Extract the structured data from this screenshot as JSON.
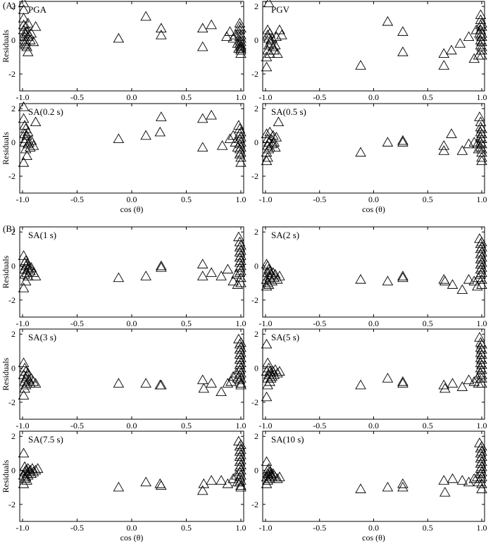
{
  "section_labels": {
    "a": "(A)",
    "b": "(B)"
  },
  "style": {
    "line_color": "#000000",
    "background": "#ffffff"
  },
  "chart_data": [
    {
      "type": "scatter",
      "title": "PGA",
      "xlabel": "",
      "ylabel": "Residuals",
      "xlim": [
        -1.0,
        1.0
      ],
      "ylim": [
        -3.0,
        2.3
      ],
      "xticks": [
        "-1.0",
        "-0.5",
        "0.0",
        "0.5",
        "1.0"
      ],
      "yticks": [
        "-2",
        "0",
        "2"
      ],
      "x": [
        -0.99,
        -0.99,
        -0.99,
        -0.99,
        -0.99,
        -0.98,
        -0.98,
        -0.98,
        -0.98,
        -0.97,
        -0.97,
        -0.97,
        -0.96,
        -0.96,
        -0.95,
        -0.95,
        -0.95,
        -0.94,
        -0.93,
        -0.92,
        -0.9,
        -0.88,
        -0.12,
        0.13,
        0.27,
        0.27,
        0.65,
        0.65,
        0.73,
        0.87,
        0.9,
        0.93,
        0.95,
        0.97,
        0.98,
        0.99,
        0.99,
        0.99,
        0.99,
        0.99,
        0.99,
        0.99,
        1.0,
        1.0,
        1.0,
        1.0,
        1.0,
        1.0,
        1.0,
        1.0,
        1.0
      ],
      "y": [
        2.2,
        1.8,
        1.3,
        0.9,
        0.6,
        0.4,
        0.2,
        0.0,
        -0.2,
        -0.3,
        -0.1,
        0.8,
        0.5,
        -0.4,
        0.2,
        1.0,
        -0.7,
        0.3,
        0.0,
        0.4,
        -0.1,
        0.8,
        0.1,
        1.4,
        0.7,
        0.3,
        0.7,
        -0.4,
        0.9,
        0.2,
        0.5,
        0.1,
        0.3,
        -0.2,
        -0.5,
        1.0,
        0.8,
        0.6,
        0.4,
        0.2,
        0.0,
        -0.2,
        -0.4,
        -0.6,
        -0.8,
        0.3,
        0.1,
        -0.1,
        -0.3,
        -0.5,
        0.7
      ]
    },
    {
      "type": "scatter",
      "title": "PGV",
      "xlabel": "",
      "ylabel": "",
      "xlim": [
        -1.0,
        1.0
      ],
      "ylim": [
        -3.0,
        2.3
      ],
      "xticks": [
        "-1.0",
        "-0.5",
        "0.0",
        "0.5",
        "1.0"
      ],
      "yticks": [
        "-2",
        "0",
        "2"
      ],
      "x": [
        -0.99,
        -0.99,
        -0.98,
        -0.98,
        -0.98,
        -0.97,
        -0.97,
        -0.97,
        -0.96,
        -0.96,
        -0.95,
        -0.95,
        -0.94,
        -0.93,
        -0.92,
        -0.91,
        -0.9,
        -0.89,
        -0.87,
        -0.85,
        -0.12,
        0.13,
        0.27,
        0.27,
        0.65,
        0.65,
        0.72,
        0.8,
        0.88,
        0.93,
        0.95,
        0.97,
        0.98,
        0.99,
        0.99,
        0.99,
        0.99,
        0.99,
        0.99,
        0.99,
        1.0,
        1.0,
        1.0,
        1.0,
        1.0,
        1.0,
        1.0,
        1.0
      ],
      "y": [
        -1.6,
        -1.0,
        -0.6,
        0.3,
        0.6,
        2.2,
        -0.3,
        0.1,
        -0.8,
        0.4,
        -0.2,
        0.0,
        0.1,
        -0.4,
        -0.6,
        -0.3,
        0.2,
        -0.8,
        0.6,
        0.3,
        -1.5,
        1.1,
        0.5,
        -0.7,
        -1.5,
        -0.8,
        -0.6,
        -0.2,
        0.2,
        -1.1,
        0.6,
        -0.9,
        0.4,
        1.5,
        1.2,
        0.9,
        0.6,
        0.3,
        0.0,
        -0.3,
        -0.6,
        -0.9,
        1.0,
        0.8,
        0.4,
        0.2,
        -0.1,
        -0.4
      ]
    },
    {
      "type": "scatter",
      "title": "SA(0.2 s)",
      "xlabel": "cos (θ)",
      "ylabel": "Residuals",
      "xlim": [
        -1.0,
        1.0
      ],
      "ylim": [
        -3.0,
        2.3
      ],
      "xticks": [
        "-1.0",
        "-0.5",
        "0.0",
        "0.5",
        "1.0"
      ],
      "yticks": [
        "-2",
        "0",
        "2"
      ],
      "x": [
        -0.99,
        -0.99,
        -0.99,
        -0.98,
        -0.98,
        -0.98,
        -0.97,
        -0.97,
        -0.97,
        -0.96,
        -0.96,
        -0.95,
        -0.95,
        -0.94,
        -0.93,
        -0.92,
        -0.9,
        -0.88,
        -0.12,
        0.13,
        0.26,
        0.27,
        0.65,
        0.65,
        0.73,
        0.83,
        0.9,
        0.93,
        0.95,
        0.97,
        0.98,
        0.99,
        0.99,
        0.99,
        0.99,
        0.99,
        0.99,
        1.0,
        1.0,
        1.0,
        1.0,
        1.0,
        1.0,
        1.0
      ],
      "y": [
        2.1,
        1.4,
        -1.2,
        1.0,
        0.5,
        0.0,
        -0.4,
        0.8,
        0.2,
        -0.8,
        0.4,
        -0.1,
        0.6,
        0.0,
        -0.3,
        0.1,
        -0.2,
        1.2,
        0.2,
        0.4,
        0.6,
        1.5,
        1.4,
        -0.3,
        1.6,
        -0.2,
        0.2,
        0.4,
        0.0,
        -0.3,
        1.0,
        0.8,
        0.5,
        0.2,
        -0.1,
        -0.4,
        -0.7,
        0.6,
        0.3,
        0.0,
        -0.3,
        -0.6,
        -0.9,
        -1.2
      ]
    },
    {
      "type": "scatter",
      "title": "SA(0.5 s)",
      "xlabel": "cos (θ)",
      "ylabel": "",
      "xlim": [
        -1.0,
        1.0
      ],
      "ylim": [
        -3.0,
        2.3
      ],
      "xticks": [
        "-1.0",
        "-0.5",
        "0.0",
        "0.5",
        "1.0"
      ],
      "yticks": [
        "-2",
        "0",
        "2"
      ],
      "x": [
        -0.99,
        -0.99,
        -0.99,
        -0.98,
        -0.98,
        -0.98,
        -0.97,
        -0.97,
        -0.96,
        -0.96,
        -0.95,
        -0.94,
        -0.93,
        -0.92,
        -0.91,
        -0.9,
        -0.88,
        -0.12,
        0.13,
        0.27,
        0.27,
        0.65,
        0.65,
        0.72,
        0.82,
        0.88,
        0.93,
        0.96,
        0.97,
        0.98,
        0.99,
        0.99,
        0.99,
        0.99,
        0.99,
        0.99,
        1.0,
        1.0,
        1.0,
        1.0,
        1.0,
        1.0,
        1.0,
        1.0
      ],
      "y": [
        -1.1,
        -0.6,
        0.5,
        0.2,
        -0.2,
        -0.9,
        0.0,
        -0.4,
        0.6,
        -0.3,
        0.2,
        -0.1,
        0.4,
        0.0,
        -0.3,
        0.3,
        1.2,
        -0.6,
        0.0,
        0.1,
        0.0,
        -0.2,
        -0.5,
        0.5,
        -0.5,
        -0.1,
        0.0,
        -0.1,
        -0.4,
        1.5,
        1.2,
        0.9,
        0.6,
        0.3,
        0.0,
        -0.3,
        -0.6,
        -0.9,
        0.8,
        0.5,
        0.2,
        -0.1,
        -0.4,
        -1.1
      ]
    },
    {
      "type": "scatter",
      "title": "SA(1 s)",
      "xlabel": "",
      "ylabel": "Residuals",
      "xlim": [
        -1.0,
        1.0
      ],
      "ylim": [
        -3.0,
        2.3
      ],
      "xticks": [
        "-1.0",
        "-0.5",
        "0.0",
        "0.5",
        "1.0"
      ],
      "yticks": [
        "-2",
        "0",
        "2"
      ],
      "x": [
        -0.99,
        -0.99,
        -0.98,
        -0.98,
        -0.98,
        -0.97,
        -0.97,
        -0.97,
        -0.96,
        -0.96,
        -0.95,
        -0.95,
        -0.94,
        -0.93,
        -0.92,
        -0.9,
        -0.88,
        -0.12,
        0.13,
        0.27,
        0.27,
        0.65,
        0.65,
        0.73,
        0.82,
        0.88,
        0.93,
        0.96,
        0.97,
        0.98,
        0.99,
        0.99,
        0.99,
        0.99,
        0.99,
        0.99,
        0.99,
        1.0,
        1.0,
        1.0,
        1.0,
        1.0,
        1.0,
        1.0,
        1.0
      ],
      "y": [
        -1.3,
        0.6,
        0.2,
        -0.2,
        -0.5,
        0.0,
        -0.9,
        0.3,
        -0.4,
        0.1,
        -0.2,
        -0.6,
        0.0,
        -0.3,
        -0.1,
        -0.4,
        -0.6,
        -0.7,
        -0.6,
        0.0,
        -0.1,
        0.1,
        -0.6,
        -0.4,
        -0.6,
        -0.2,
        -0.9,
        -0.5,
        -1.1,
        1.7,
        1.4,
        1.1,
        0.8,
        0.5,
        0.2,
        -0.1,
        -0.4,
        -0.7,
        -1.0,
        1.2,
        0.9,
        0.6,
        0.3,
        0.0,
        -0.3
      ]
    },
    {
      "type": "scatter",
      "title": "SA(2 s)",
      "xlabel": "",
      "ylabel": "",
      "xlim": [
        -1.0,
        1.0
      ],
      "ylim": [
        -3.0,
        2.3
      ],
      "xticks": [
        "-1.0",
        "-0.5",
        "0.0",
        "0.5",
        "1.0"
      ],
      "yticks": [
        "-2",
        "0",
        "2"
      ],
      "x": [
        -0.99,
        -0.99,
        -0.99,
        -0.98,
        -0.98,
        -0.98,
        -0.97,
        -0.97,
        -0.97,
        -0.96,
        -0.96,
        -0.95,
        -0.94,
        -0.93,
        -0.92,
        -0.91,
        -0.89,
        -0.87,
        -0.12,
        0.13,
        0.27,
        0.27,
        0.65,
        0.66,
        0.73,
        0.82,
        0.88,
        0.93,
        0.96,
        0.97,
        0.98,
        0.99,
        0.99,
        0.99,
        0.99,
        0.99,
        0.99,
        0.99,
        1.0,
        1.0,
        1.0,
        1.0,
        1.0,
        1.0,
        1.0,
        1.0,
        1.0
      ],
      "y": [
        -1.2,
        -0.8,
        0.1,
        -0.4,
        0.0,
        -1.0,
        -0.6,
        -0.2,
        -1.1,
        -0.3,
        -0.7,
        -0.5,
        -0.9,
        -0.4,
        -0.7,
        -0.5,
        -0.8,
        -0.6,
        -0.8,
        -0.9,
        -0.6,
        -0.7,
        -0.8,
        -0.9,
        -1.1,
        -1.4,
        -0.8,
        -0.9,
        -1.2,
        -0.7,
        1.6,
        1.3,
        1.0,
        0.7,
        0.4,
        0.1,
        -0.2,
        -0.5,
        -0.8,
        -1.1,
        1.4,
        1.1,
        0.8,
        0.5,
        0.2,
        -0.1,
        -0.4
      ]
    },
    {
      "type": "scatter",
      "title": "SA(3 s)",
      "xlabel": "",
      "ylabel": "Residuals",
      "xlim": [
        -1.0,
        1.0
      ],
      "ylim": [
        -3.0,
        2.3
      ],
      "xticks": [
        "-1.0",
        "-0.5",
        "0.0",
        "0.5",
        "1.0"
      ],
      "yticks": [
        "-2",
        "0",
        "2"
      ],
      "x": [
        -0.99,
        -0.99,
        -0.99,
        -0.98,
        -0.98,
        -0.98,
        -0.97,
        -0.97,
        -0.97,
        -0.96,
        -0.96,
        -0.95,
        -0.94,
        -0.93,
        -0.92,
        -0.9,
        -0.88,
        -0.12,
        0.13,
        0.26,
        0.27,
        0.65,
        0.66,
        0.73,
        0.82,
        0.88,
        0.91,
        0.93,
        0.96,
        0.97,
        0.98,
        0.99,
        0.99,
        0.99,
        0.99,
        0.99,
        0.99,
        0.99,
        0.99,
        1.0,
        1.0,
        1.0,
        1.0,
        1.0,
        1.0,
        1.0,
        1.0,
        1.0,
        1.0
      ],
      "y": [
        0.3,
        -0.4,
        -1.6,
        0.0,
        -0.8,
        -1.2,
        -0.2,
        -0.6,
        -1.0,
        -0.5,
        -0.9,
        -0.3,
        -0.7,
        -0.9,
        -0.6,
        -0.8,
        -0.9,
        -0.9,
        -0.9,
        -1.0,
        -1.0,
        -0.7,
        -1.2,
        -0.9,
        -1.4,
        -0.9,
        -0.8,
        -0.5,
        -0.3,
        -0.6,
        1.7,
        1.4,
        1.1,
        0.8,
        0.5,
        0.2,
        -0.1,
        -0.4,
        -0.7,
        -1.0,
        1.5,
        1.2,
        0.9,
        0.6,
        0.3,
        0.0,
        -0.3,
        -0.6,
        -0.9
      ]
    },
    {
      "type": "scatter",
      "title": "SA(5 s)",
      "xlabel": "",
      "ylabel": "",
      "xlim": [
        -1.0,
        1.0
      ],
      "ylim": [
        -3.0,
        2.3
      ],
      "xticks": [
        "-1.0",
        "-0.5",
        "0.0",
        "0.5",
        "1.0"
      ],
      "yticks": [
        "-2",
        "0",
        "2"
      ],
      "x": [
        -0.99,
        -0.99,
        -0.99,
        -0.98,
        -0.98,
        -0.98,
        -0.97,
        -0.97,
        -0.96,
        -0.96,
        -0.95,
        -0.95,
        -0.94,
        -0.93,
        -0.92,
        -0.91,
        -0.89,
        -0.87,
        -0.12,
        0.13,
        0.27,
        0.27,
        0.65,
        0.66,
        0.73,
        0.82,
        0.88,
        0.93,
        0.96,
        0.97,
        0.98,
        0.99,
        0.99,
        0.99,
        0.99,
        0.99,
        0.99,
        0.99,
        1.0,
        1.0,
        1.0,
        1.0,
        1.0,
        1.0,
        1.0,
        1.0,
        1.0
      ],
      "y": [
        1.4,
        -0.2,
        -1.7,
        0.3,
        -0.6,
        -1.0,
        0.0,
        -0.4,
        -0.8,
        -0.2,
        -0.6,
        -0.3,
        -0.5,
        -0.2,
        -0.4,
        -0.1,
        -0.3,
        -0.2,
        -1.0,
        -0.6,
        -0.8,
        -0.9,
        -1.0,
        -1.2,
        -0.9,
        -1.1,
        -0.7,
        -0.8,
        -0.6,
        -0.9,
        1.8,
        1.5,
        1.2,
        0.9,
        0.6,
        0.3,
        0.0,
        -0.3,
        -0.6,
        -0.9,
        1.4,
        1.1,
        0.8,
        0.5,
        0.2,
        -0.1,
        -0.4
      ]
    },
    {
      "type": "scatter",
      "title": "SA(7.5 s)",
      "xlabel": "cos (θ)",
      "ylabel": "Residuals",
      "xlim": [
        -1.0,
        1.0
      ],
      "ylim": [
        -3.0,
        2.3
      ],
      "xticks": [
        "-1.0",
        "-0.5",
        "0.0",
        "0.5",
        "1.0"
      ],
      "yticks": [
        "-2",
        "0",
        "2"
      ],
      "x": [
        -0.99,
        -0.99,
        -0.99,
        -0.98,
        -0.98,
        -0.98,
        -0.97,
        -0.97,
        -0.96,
        -0.96,
        -0.95,
        -0.95,
        -0.94,
        -0.93,
        -0.92,
        -0.91,
        -0.9,
        -0.88,
        -0.86,
        -0.12,
        0.13,
        0.26,
        0.27,
        0.65,
        0.66,
        0.73,
        0.82,
        0.88,
        0.93,
        0.96,
        0.97,
        0.98,
        0.99,
        0.99,
        0.99,
        0.99,
        0.99,
        0.99,
        0.99,
        0.99,
        1.0,
        1.0,
        1.0,
        1.0,
        1.0,
        1.0,
        1.0,
        1.0,
        1.0,
        1.0
      ],
      "y": [
        1.0,
        -0.3,
        -0.8,
        0.2,
        -0.5,
        -0.1,
        0.0,
        -0.4,
        -0.6,
        -0.2,
        0.1,
        -0.3,
        -0.1,
        0.0,
        -0.2,
        0.1,
        -0.1,
        0.0,
        0.1,
        -1.0,
        -0.7,
        -0.8,
        -0.9,
        -1.2,
        -0.8,
        -0.6,
        -0.6,
        -0.8,
        -0.5,
        -0.3,
        -0.7,
        1.7,
        1.4,
        1.1,
        0.8,
        0.5,
        0.2,
        -0.1,
        -0.4,
        -0.7,
        -1.0,
        1.5,
        1.2,
        0.9,
        0.6,
        0.3,
        0.0,
        -0.3,
        -0.6,
        -0.9
      ]
    },
    {
      "type": "scatter",
      "title": "SA(10 s)",
      "xlabel": "cos (θ)",
      "ylabel": "",
      "xlim": [
        -1.0,
        1.0
      ],
      "ylim": [
        -3.0,
        2.3
      ],
      "xticks": [
        "-1.0",
        "-0.5",
        "0.0",
        "0.5",
        "1.0"
      ],
      "yticks": [
        "-2",
        "0",
        "2"
      ],
      "x": [
        -0.99,
        -0.99,
        -0.99,
        -0.98,
        -0.98,
        -0.98,
        -0.97,
        -0.97,
        -0.96,
        -0.96,
        -0.95,
        -0.95,
        -0.94,
        -0.93,
        -0.92,
        -0.91,
        -0.89,
        -0.87,
        -0.12,
        0.13,
        0.27,
        0.27,
        0.65,
        0.66,
        0.73,
        0.82,
        0.88,
        0.93,
        0.96,
        0.97,
        0.98,
        0.99,
        0.99,
        0.99,
        0.99,
        0.99,
        0.99,
        0.99,
        1.0,
        1.0,
        1.0,
        1.0,
        1.0,
        1.0,
        1.0,
        1.0,
        1.0
      ],
      "y": [
        0.5,
        -0.4,
        -0.8,
        0.0,
        -0.6,
        -0.2,
        0.1,
        -0.3,
        -0.5,
        -0.1,
        -0.3,
        -0.2,
        -0.4,
        -0.2,
        -0.3,
        -0.4,
        -0.5,
        -0.4,
        -1.1,
        -1.0,
        -0.8,
        -1.0,
        -0.6,
        -1.3,
        -0.5,
        -0.6,
        -0.7,
        -0.5,
        -0.4,
        -0.7,
        1.6,
        1.3,
        1.0,
        0.7,
        0.4,
        0.1,
        -0.2,
        -0.5,
        -0.8,
        -1.1,
        1.4,
        1.1,
        0.8,
        0.5,
        0.2,
        -0.1,
        -0.4
      ]
    }
  ]
}
